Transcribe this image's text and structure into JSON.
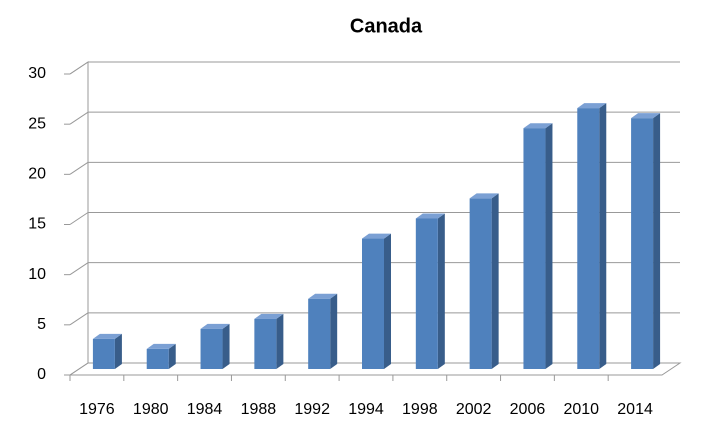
{
  "chart_data": {
    "type": "bar",
    "title": "Canada",
    "categories": [
      "1976",
      "1980",
      "1984",
      "1988",
      "1992",
      "1994",
      "1998",
      "2002",
      "2006",
      "2010",
      "2014"
    ],
    "values": [
      3,
      2,
      4,
      5,
      7,
      13,
      15,
      17,
      24,
      26,
      25
    ],
    "color": "#4f81bd",
    "ylim": [
      0,
      30
    ],
    "yticks": [
      0,
      5,
      10,
      15,
      20,
      25,
      30
    ],
    "grid": true
  }
}
